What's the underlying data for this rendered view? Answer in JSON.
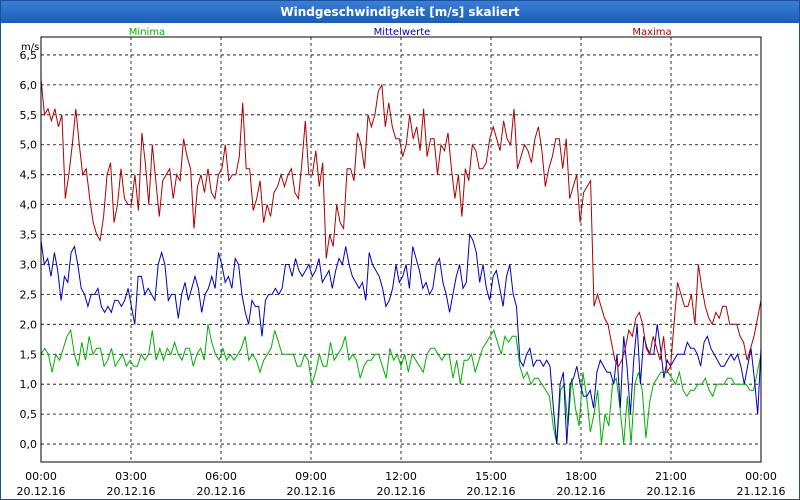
{
  "window": {
    "title": "Windgeschwindigkeit [m/s] skaliert"
  },
  "colors": {
    "minima": "#00b000",
    "mittelwerte": "#0000c0",
    "maxima": "#b00000",
    "grid": "#000000"
  },
  "chart_data": {
    "type": "line",
    "title": "Windgeschwindigkeit [m/s] skaliert",
    "ylabel": "m/s",
    "ylim": [
      -0.3,
      6.8
    ],
    "xlim": [
      0,
      24
    ],
    "yticks": [
      "0,0",
      "0,5",
      "1,0",
      "1,5",
      "2,0",
      "2,5",
      "3,0",
      "3,5",
      "4,0",
      "4,5",
      "5,0",
      "5,5",
      "6,0",
      "6,5"
    ],
    "xticks": [
      {
        "time": "00:00",
        "date": "20.12.16"
      },
      {
        "time": "03:00",
        "date": "20.12.16"
      },
      {
        "time": "06:00",
        "date": "20.12.16"
      },
      {
        "time": "09:00",
        "date": "20.12.16"
      },
      {
        "time": "12:00",
        "date": "20.12.16"
      },
      {
        "time": "15:00",
        "date": "20.12.16"
      },
      {
        "time": "18:00",
        "date": "20.12.16"
      },
      {
        "time": "21:00",
        "date": "20.12.16"
      },
      {
        "time": "00:00",
        "date": "21.12.16"
      }
    ],
    "grid": true,
    "legend": [
      "Minima",
      "Mittelwerte",
      "Maxima"
    ],
    "x_step_hours": 0.1667,
    "series": [
      {
        "name": "Minima",
        "color": "#00b000",
        "values": [
          1.5,
          1.6,
          1.5,
          1.2,
          1.5,
          1.4,
          1.6,
          1.8,
          1.9,
          1.5,
          1.3,
          1.7,
          1.4,
          1.8,
          1.5,
          1.6,
          1.6,
          1.3,
          1.4,
          1.6,
          1.3,
          1.4,
          1.5,
          1.3,
          1.4,
          1.3,
          1.3,
          1.5,
          1.4,
          1.5,
          1.9,
          1.4,
          1.6,
          1.4,
          1.6,
          1.5,
          1.7,
          1.5,
          1.4,
          1.6,
          1.6,
          1.3,
          1.5,
          1.6,
          1.4,
          2.0,
          1.7,
          1.5,
          1.4,
          1.6,
          1.4,
          1.5,
          1.4,
          1.5,
          1.6,
          1.8,
          1.4,
          1.5,
          1.4,
          1.2,
          1.4,
          1.5,
          1.6,
          1.9,
          1.7,
          1.5,
          1.5,
          1.5,
          1.5,
          1.3,
          1.3,
          1.5,
          1.4,
          1.0,
          1.2,
          1.5,
          1.3,
          1.3,
          1.7,
          1.4,
          1.5,
          1.6,
          1.8,
          1.4,
          1.5,
          1.4,
          1.1,
          1.3,
          1.4,
          1.4,
          1.5,
          1.5,
          1.3,
          1.1,
          1.6,
          1.4,
          1.5,
          1.3,
          1.5,
          1.2,
          1.5,
          1.4,
          1.3,
          1.2,
          1.5,
          1.6,
          1.6,
          1.5,
          1.4,
          1.5,
          1.5,
          1.1,
          1.4,
          1.0,
          1.4,
          1.4,
          1.5,
          1.2,
          1.4,
          1.6,
          1.7,
          1.8,
          1.9,
          1.7,
          1.5,
          1.8,
          1.7,
          1.8,
          1.8,
          1.3,
          1.1,
          1.2,
          1.0,
          1.1,
          1.1,
          1.0,
          0.9,
          0.8,
          0.3,
          0.0,
          0.9,
          1.0,
          0.3,
          1.1,
          0.6,
          0.3,
          1.2,
          0.8,
          0.2,
          0.5,
          0.9,
          0.0,
          0.5,
          0.3,
          1.0,
          1.1,
          0.6,
          0.0,
          0.8,
          0.0,
          1.0,
          1.2,
          0.9,
          0.1,
          0.7,
          1.0,
          1.1,
          1.2,
          1.2,
          1.2,
          1.1,
          1.0,
          1.2,
          0.9,
          0.8,
          0.9,
          0.9,
          1.0,
          1.0,
          1.1,
          0.9,
          0.8,
          1.0,
          1.0,
          1.0,
          1.1,
          1.1,
          1.0,
          1.0,
          1.0,
          1.0,
          0.9,
          0.9,
          1.2,
          1.5
        ]
      },
      {
        "name": "Mittelwerte",
        "color": "#0000c0",
        "values": [
          3.4,
          3.0,
          3.1,
          2.8,
          3.2,
          2.9,
          2.4,
          2.8,
          2.7,
          3.2,
          3.3,
          3.0,
          2.6,
          2.5,
          2.3,
          2.5,
          2.5,
          2.6,
          2.3,
          2.2,
          2.3,
          2.2,
          2.4,
          2.4,
          2.3,
          2.4,
          2.6,
          2.3,
          2.0,
          2.8,
          2.8,
          2.5,
          2.6,
          2.5,
          2.4,
          3.0,
          3.2,
          3.0,
          2.4,
          2.5,
          2.5,
          2.1,
          2.5,
          2.7,
          2.4,
          2.6,
          2.8,
          2.6,
          2.2,
          2.5,
          2.6,
          2.8,
          2.6,
          3.2,
          3.0,
          2.7,
          2.8,
          2.6,
          3.1,
          3.0,
          2.5,
          2.2,
          2.0,
          2.4,
          2.3,
          2.3,
          1.8,
          2.4,
          2.5,
          2.5,
          2.6,
          2.5,
          2.6,
          3.0,
          3.0,
          2.8,
          3.1,
          2.9,
          2.8,
          2.9,
          3.0,
          2.8,
          2.9,
          3.1,
          2.7,
          2.8,
          2.9,
          2.6,
          2.9,
          3.1,
          3.0,
          3.3,
          3.0,
          2.8,
          2.7,
          2.6,
          2.7,
          2.4,
          3.2,
          3.0,
          2.9,
          2.8,
          2.6,
          2.3,
          2.4,
          2.6,
          3.0,
          2.7,
          2.8,
          3.0,
          2.6,
          3.3,
          3.1,
          2.9,
          2.6,
          2.7,
          2.5,
          2.6,
          3.0,
          3.1,
          2.7,
          2.5,
          2.2,
          2.5,
          2.8,
          3.0,
          2.6,
          2.7,
          3.5,
          3.4,
          3.2,
          2.7,
          3.0,
          2.6,
          2.4,
          2.8,
          2.9,
          2.6,
          2.3,
          2.8,
          3.0,
          2.5,
          2.3,
          1.4,
          1.3,
          1.5,
          1.6,
          1.3,
          1.4,
          1.4,
          1.3,
          1.4,
          1.3,
          0.6,
          0.0,
          1.0,
          1.2,
          0.0,
          1.0,
          1.1,
          1.3,
          1.0,
          0.8,
          0.8,
          0.9,
          0.6,
          1.2,
          1.4,
          1.3,
          1.2,
          1.2,
          1.0,
          1.5,
          0.6,
          1.8,
          1.3,
          0.5,
          1.4,
          2.0,
          1.0,
          1.8,
          1.6,
          1.5,
          1.5,
          2.0,
          1.6,
          1.1,
          1.4,
          1.3,
          1.4,
          1.5,
          1.5,
          1.5,
          1.7,
          1.6,
          1.6,
          1.5,
          1.3,
          1.7,
          1.8,
          1.6,
          1.5,
          1.4,
          1.3,
          1.3,
          1.4,
          1.5,
          1.4,
          1.5,
          1.3,
          1.0,
          1.3,
          1.6,
          1.1,
          0.5,
          1.6
        ]
      },
      {
        "name": "Maxima",
        "color": "#b00000",
        "values": [
          6.1,
          5.5,
          5.6,
          5.4,
          5.6,
          5.3,
          5.5,
          4.1,
          4.5,
          5.0,
          5.6,
          5.0,
          4.5,
          4.6,
          4.1,
          3.7,
          3.5,
          3.4,
          3.8,
          4.5,
          4.7,
          3.7,
          4.0,
          4.6,
          4.1,
          4.0,
          4.0,
          4.5,
          3.9,
          5.2,
          4.7,
          4.0,
          5.0,
          4.4,
          3.8,
          4.4,
          4.5,
          4.6,
          4.1,
          4.5,
          4.4,
          5.1,
          4.8,
          4.6,
          3.6,
          4.3,
          4.5,
          4.2,
          4.6,
          4.2,
          4.1,
          4.5,
          4.6,
          5.0,
          4.4,
          4.5,
          4.5,
          4.8,
          5.7,
          4.6,
          4.6,
          3.9,
          4.1,
          4.4,
          3.7,
          4.0,
          3.8,
          4.2,
          4.3,
          4.5,
          4.3,
          4.5,
          4.6,
          4.2,
          4.1,
          4.7,
          5.4,
          4.5,
          4.5,
          4.9,
          4.3,
          4.7,
          3.1,
          3.5,
          3.3,
          4.0,
          3.7,
          3.6,
          4.6,
          4.6,
          4.4,
          5.2,
          5.0,
          4.6,
          5.5,
          5.3,
          5.5,
          5.9,
          6.0,
          5.3,
          5.7,
          5.3,
          5.1,
          5.1,
          4.8,
          5.0,
          5.5,
          5.1,
          5.3,
          4.9,
          5.6,
          4.8,
          5.1,
          5.1,
          4.5,
          5.0,
          4.9,
          5.2,
          4.6,
          4.1,
          4.5,
          3.8,
          4.6,
          4.4,
          5.0,
          4.9,
          4.6,
          4.6,
          4.7,
          5.1,
          5.3,
          5.1,
          4.9,
          5.4,
          5.1,
          5.0,
          5.6,
          4.6,
          4.8,
          5.0,
          4.9,
          4.7,
          5.1,
          5.3,
          4.9,
          4.3,
          4.6,
          4.8,
          5.1,
          5.1,
          4.6,
          5.1,
          4.1,
          4.3,
          4.5,
          3.7,
          4.2,
          4.3,
          4.4,
          2.3,
          2.5,
          2.3,
          2.1,
          2.0,
          1.7,
          1.4,
          1.3,
          1.4,
          1.6,
          1.9,
          1.8,
          2.1,
          2.2,
          2.0,
          1.6,
          1.5,
          1.8,
          1.6,
          1.4,
          1.8,
          1.2,
          1.3,
          2.0,
          2.7,
          2.5,
          2.3,
          2.3,
          2.5,
          2.0,
          3.0,
          2.6,
          2.3,
          2.1,
          2.0,
          2.2,
          2.1,
          2.3,
          2.3,
          2.0,
          2.0,
          2.0,
          1.8,
          1.7,
          1.4,
          1.6,
          1.8,
          2.1,
          2.4
        ]
      }
    ]
  }
}
